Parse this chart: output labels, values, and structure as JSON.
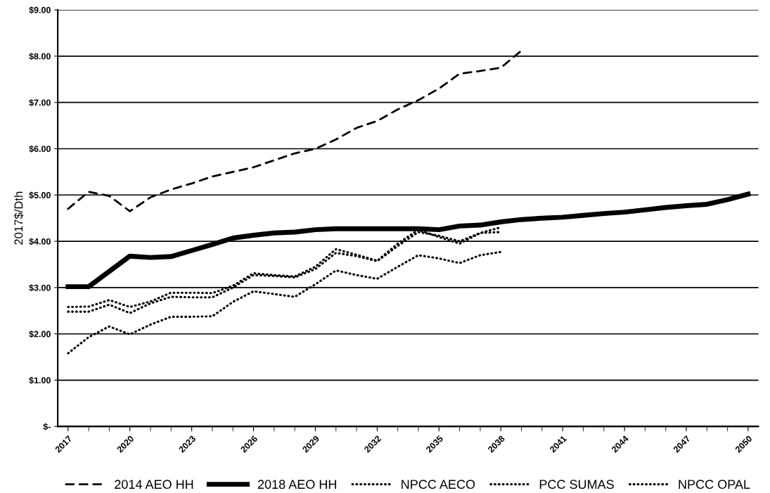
{
  "chart_data": {
    "type": "line",
    "ylabel": "2017$/Dth",
    "categories": [
      "2017",
      null,
      null,
      "2020",
      null,
      null,
      "2023",
      null,
      null,
      "2026",
      null,
      null,
      "2029",
      null,
      null,
      "2032",
      null,
      null,
      "2035",
      null,
      null,
      "2038",
      null,
      null,
      "2041",
      null,
      null,
      "2044",
      null,
      null,
      "2047",
      null,
      null,
      "2050"
    ],
    "series": [
      {
        "name": "2014 AEO HH",
        "color": "#000000",
        "line_style": "dashed",
        "values": [
          4.7,
          5.07,
          4.98,
          4.65,
          4.95,
          5.12,
          5.25,
          5.4,
          5.5,
          5.6,
          5.75,
          5.9,
          6.0,
          6.2,
          6.45,
          6.6,
          6.85,
          7.05,
          7.3,
          7.62,
          7.68,
          7.75,
          8.12,
          null,
          null,
          null,
          null,
          null,
          null,
          null,
          null,
          null,
          null,
          null
        ]
      },
      {
        "name": "2018 AEO HH",
        "color": "#000000",
        "line_style": "solid",
        "values": [
          3.02,
          3.02,
          3.35,
          3.68,
          3.65,
          3.67,
          3.8,
          3.93,
          4.07,
          4.13,
          4.18,
          4.2,
          4.25,
          4.27,
          4.27,
          4.27,
          4.27,
          4.27,
          4.25,
          4.33,
          4.35,
          4.42,
          4.47,
          4.5,
          4.52,
          4.56,
          4.6,
          4.63,
          4.68,
          4.73,
          4.77,
          4.8,
          4.9,
          5.02
        ]
      },
      {
        "name": "NPCC AECO",
        "color": "#000000",
        "line_style": "dotted",
        "values": [
          1.58,
          1.93,
          2.16,
          1.99,
          2.2,
          2.37,
          2.37,
          2.38,
          2.69,
          2.92,
          2.86,
          2.8,
          3.07,
          3.37,
          3.27,
          3.19,
          3.45,
          3.7,
          3.63,
          3.53,
          3.7,
          3.77,
          null,
          null,
          null,
          null,
          null,
          null,
          null,
          null,
          null,
          null,
          null,
          null
        ]
      },
      {
        "name": "PCC SUMAS",
        "color": "#000000",
        "line_style": "dotted",
        "values": [
          2.58,
          2.59,
          2.73,
          2.58,
          2.7,
          2.89,
          2.89,
          2.88,
          3.04,
          3.31,
          3.27,
          3.24,
          3.45,
          3.83,
          3.71,
          3.58,
          3.95,
          4.25,
          4.09,
          3.95,
          4.18,
          4.3,
          null,
          null,
          null,
          null,
          null,
          null,
          null,
          null,
          null,
          null,
          null,
          null
        ]
      },
      {
        "name": "NPCC OPAL",
        "color": "#000000",
        "line_style": "dotted",
        "values": [
          2.48,
          2.48,
          2.63,
          2.45,
          2.66,
          2.8,
          2.79,
          2.79,
          3.0,
          3.27,
          3.25,
          3.22,
          3.4,
          3.75,
          3.68,
          3.57,
          3.9,
          4.2,
          4.12,
          4.0,
          4.18,
          4.2,
          null,
          null,
          null,
          null,
          null,
          null,
          null,
          null,
          null,
          null,
          null,
          null
        ]
      }
    ],
    "ylim": [
      0,
      9
    ],
    "yticks": [
      {
        "value": 0,
        "label": "$-"
      },
      {
        "value": 1,
        "label": "$1.00"
      },
      {
        "value": 2,
        "label": "$2.00"
      },
      {
        "value": 3,
        "label": "$3.00"
      },
      {
        "value": 4,
        "label": "$4.00"
      },
      {
        "value": 5,
        "label": "$5.00"
      },
      {
        "value": 6,
        "label": "$6.00"
      },
      {
        "value": 7,
        "label": "$7.00"
      },
      {
        "value": 8,
        "label": "$8.00"
      },
      {
        "value": 9,
        "label": "$9.00"
      }
    ],
    "grid": "y",
    "legend": "bottom",
    "marker": "none"
  }
}
